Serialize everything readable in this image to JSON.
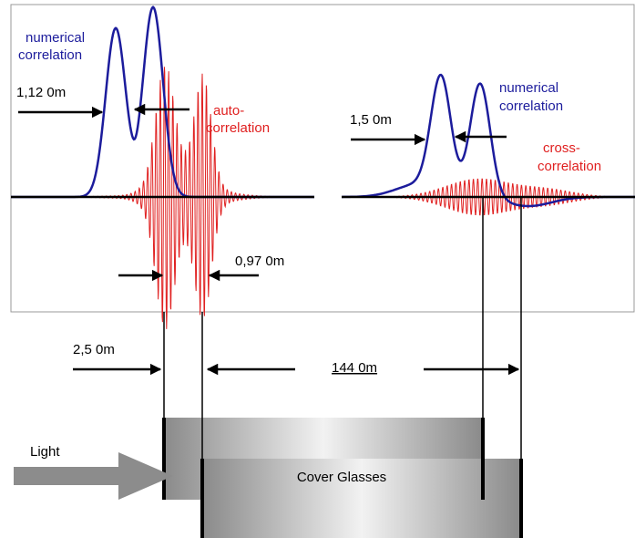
{
  "annotations": {
    "left_numerical": [
      "numerical",
      "correlation"
    ],
    "auto": [
      "auto-",
      "correlation"
    ],
    "right_numerical": [
      "numerical",
      "correlation"
    ],
    "cross": [
      "cross-",
      "correlation"
    ]
  },
  "dimensions": {
    "left_peaks": "1,12 0m",
    "right_peaks": "1,5 0m",
    "auto_peaks": "0,97 0m",
    "glass_thickness": "2,5 0m",
    "glass_gap": "144 0m"
  },
  "light": "Light",
  "sample": "Cover Glasses"
}
